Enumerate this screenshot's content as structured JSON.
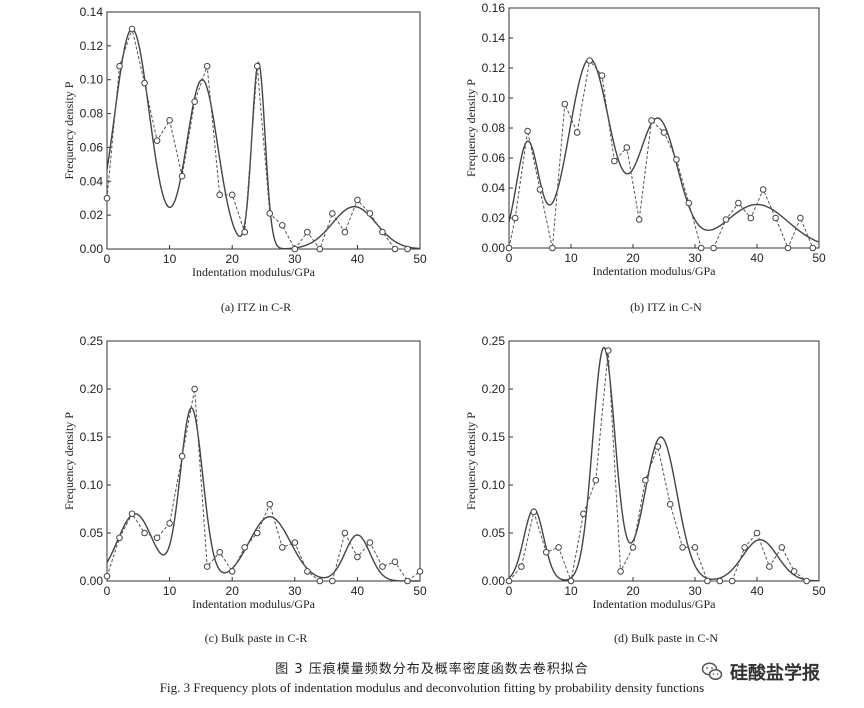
{
  "chart_data": [
    {
      "id": "a",
      "type": "line",
      "caption": "(a) ITZ in C-R",
      "xlabel": "Indentation modulus/GPa",
      "ylabel": "Frequency density P",
      "xlim": [
        0,
        50
      ],
      "ylim": [
        0,
        0.14
      ],
      "xticks": [
        "0",
        "10",
        "20",
        "30",
        "40",
        "50"
      ],
      "yticks": [
        "0.00",
        "0.02",
        "0.04",
        "0.06",
        "0.08",
        "0.10",
        "0.12",
        "0.14"
      ],
      "series": [
        {
          "style": "dashed-circles",
          "x": [
            0,
            2,
            4,
            6,
            8,
            10,
            12,
            14,
            16,
            18,
            20,
            22,
            24,
            26,
            28,
            30,
            32,
            34,
            36,
            38,
            40,
            42,
            44,
            46,
            48
          ],
          "y": [
            0.03,
            0.108,
            0.13,
            0.098,
            0.064,
            0.076,
            0.043,
            0.087,
            0.108,
            0.032,
            0.032,
            0.01,
            0.108,
            0.021,
            0.014,
            0.0,
            0.01,
            0.0,
            0.021,
            0.01,
            0.029,
            0.021,
            0.01,
            0.0,
            0.0
          ]
        },
        {
          "style": "solid-fit",
          "components": [
            {
              "mu": 4.0,
              "sigma": 2.8,
              "amp": 0.13
            },
            {
              "mu": 15.2,
              "sigma": 2.5,
              "amp": 0.1
            },
            {
              "mu": 24.2,
              "sigma": 1.05,
              "amp": 0.11
            },
            {
              "mu": 39.5,
              "sigma": 3.5,
              "amp": 0.025
            }
          ]
        }
      ]
    },
    {
      "id": "b",
      "type": "line",
      "caption": "(b) ITZ in C-N",
      "xlabel": "Indentation modulus/GPa",
      "ylabel": "Frequency density P",
      "xlim": [
        0,
        50
      ],
      "ylim": [
        0,
        0.16
      ],
      "xticks": [
        "0",
        "10",
        "20",
        "30",
        "40",
        "50"
      ],
      "yticks": [
        "0.00",
        "0.02",
        "0.04",
        "0.06",
        "0.08",
        "0.10",
        "0.12",
        "0.14",
        "0.16"
      ],
      "series": [
        {
          "style": "dashed-circles",
          "x": [
            0,
            1,
            3,
            5,
            7,
            9,
            11,
            13,
            15,
            17,
            19,
            21,
            23,
            25,
            27,
            29,
            31,
            33,
            35,
            37,
            39,
            41,
            43,
            45,
            47,
            49
          ],
          "y": [
            0.0,
            0.02,
            0.078,
            0.039,
            0.0,
            0.096,
            0.077,
            0.125,
            0.115,
            0.058,
            0.067,
            0.019,
            0.085,
            0.077,
            0.059,
            0.03,
            0.0,
            0.0,
            0.019,
            0.03,
            0.02,
            0.039,
            0.02,
            0.0,
            0.02,
            0.0
          ]
        },
        {
          "style": "solid-fit",
          "components": [
            {
              "mu": 3.0,
              "sigma": 1.8,
              "amp": 0.07
            },
            {
              "mu": 13.0,
              "sigma": 3.3,
              "amp": 0.126
            },
            {
              "mu": 24.0,
              "sigma": 3.2,
              "amp": 0.086
            },
            {
              "mu": 40.0,
              "sigma": 5.0,
              "amp": 0.029
            }
          ]
        }
      ]
    },
    {
      "id": "c",
      "type": "line",
      "caption": "(c) Bulk paste in C-R",
      "xlabel": "Indentation modulus/GPa",
      "ylabel": "Frequency density P",
      "xlim": [
        0,
        50
      ],
      "ylim": [
        0,
        0.25
      ],
      "xticks": [
        "0",
        "10",
        "20",
        "30",
        "40",
        "50"
      ],
      "yticks": [
        "0.00",
        "0.05",
        "0.10",
        "0.15",
        "0.20",
        "0.25"
      ],
      "series": [
        {
          "style": "dashed-circles",
          "x": [
            0,
            2,
            4,
            6,
            8,
            10,
            12,
            14,
            16,
            18,
            20,
            22,
            24,
            26,
            28,
            30,
            32,
            34,
            36,
            38,
            40,
            42,
            44,
            46,
            48,
            50
          ],
          "y": [
            0.005,
            0.045,
            0.07,
            0.05,
            0.045,
            0.06,
            0.13,
            0.2,
            0.015,
            0.03,
            0.01,
            0.035,
            0.05,
            0.08,
            0.035,
            0.04,
            0.01,
            0.0,
            0.0,
            0.05,
            0.025,
            0.04,
            0.015,
            0.02,
            0.0,
            0.01
          ]
        },
        {
          "style": "solid-fit",
          "components": [
            {
              "mu": 4.5,
              "sigma": 2.8,
              "amp": 0.07
            },
            {
              "mu": 13.5,
              "sigma": 1.8,
              "amp": 0.18
            },
            {
              "mu": 26.0,
              "sigma": 3.3,
              "amp": 0.067
            },
            {
              "mu": 40.0,
              "sigma": 2.0,
              "amp": 0.048
            }
          ]
        }
      ]
    },
    {
      "id": "d",
      "type": "line",
      "caption": "(d) Bulk paste in C-N",
      "xlabel": "Indentation modulus/GPa",
      "ylabel": "Frequency density P",
      "xlim": [
        0,
        50
      ],
      "ylim": [
        0,
        0.25
      ],
      "xticks": [
        "0",
        "10",
        "20",
        "30",
        "40",
        "50"
      ],
      "yticks": [
        "0.00",
        "0.05",
        "0.10",
        "0.15",
        "0.20",
        "0.25"
      ],
      "series": [
        {
          "style": "dashed-circles",
          "x": [
            0,
            2,
            4,
            6,
            8,
            10,
            12,
            14,
            16,
            18,
            20,
            22,
            24,
            26,
            28,
            30,
            32,
            34,
            36,
            38,
            40,
            42,
            44,
            46,
            48
          ],
          "y": [
            0.0,
            0.015,
            0.072,
            0.03,
            0.035,
            0.0,
            0.07,
            0.105,
            0.24,
            0.01,
            0.035,
            0.105,
            0.14,
            0.08,
            0.035,
            0.035,
            0.0,
            0.0,
            0.0,
            0.035,
            0.05,
            0.015,
            0.035,
            0.01,
            0.0
          ]
        },
        {
          "style": "solid-fit",
          "components": [
            {
              "mu": 4.0,
              "sigma": 1.6,
              "amp": 0.075
            },
            {
              "mu": 15.3,
              "sigma": 1.8,
              "amp": 0.243
            },
            {
              "mu": 24.5,
              "sigma": 2.6,
              "amp": 0.15
            },
            {
              "mu": 40.5,
              "sigma": 2.8,
              "amp": 0.043
            }
          ]
        }
      ]
    }
  ],
  "figure": {
    "caption_cn": "图 3    压痕模量频数分布及概率密度函数去卷积拟合",
    "caption_en": "Fig. 3    Frequency plots of indentation modulus and deconvolution fitting by probability density functions"
  },
  "watermark": {
    "text": "硅酸盐学报",
    "icon": "wechat-icon"
  }
}
